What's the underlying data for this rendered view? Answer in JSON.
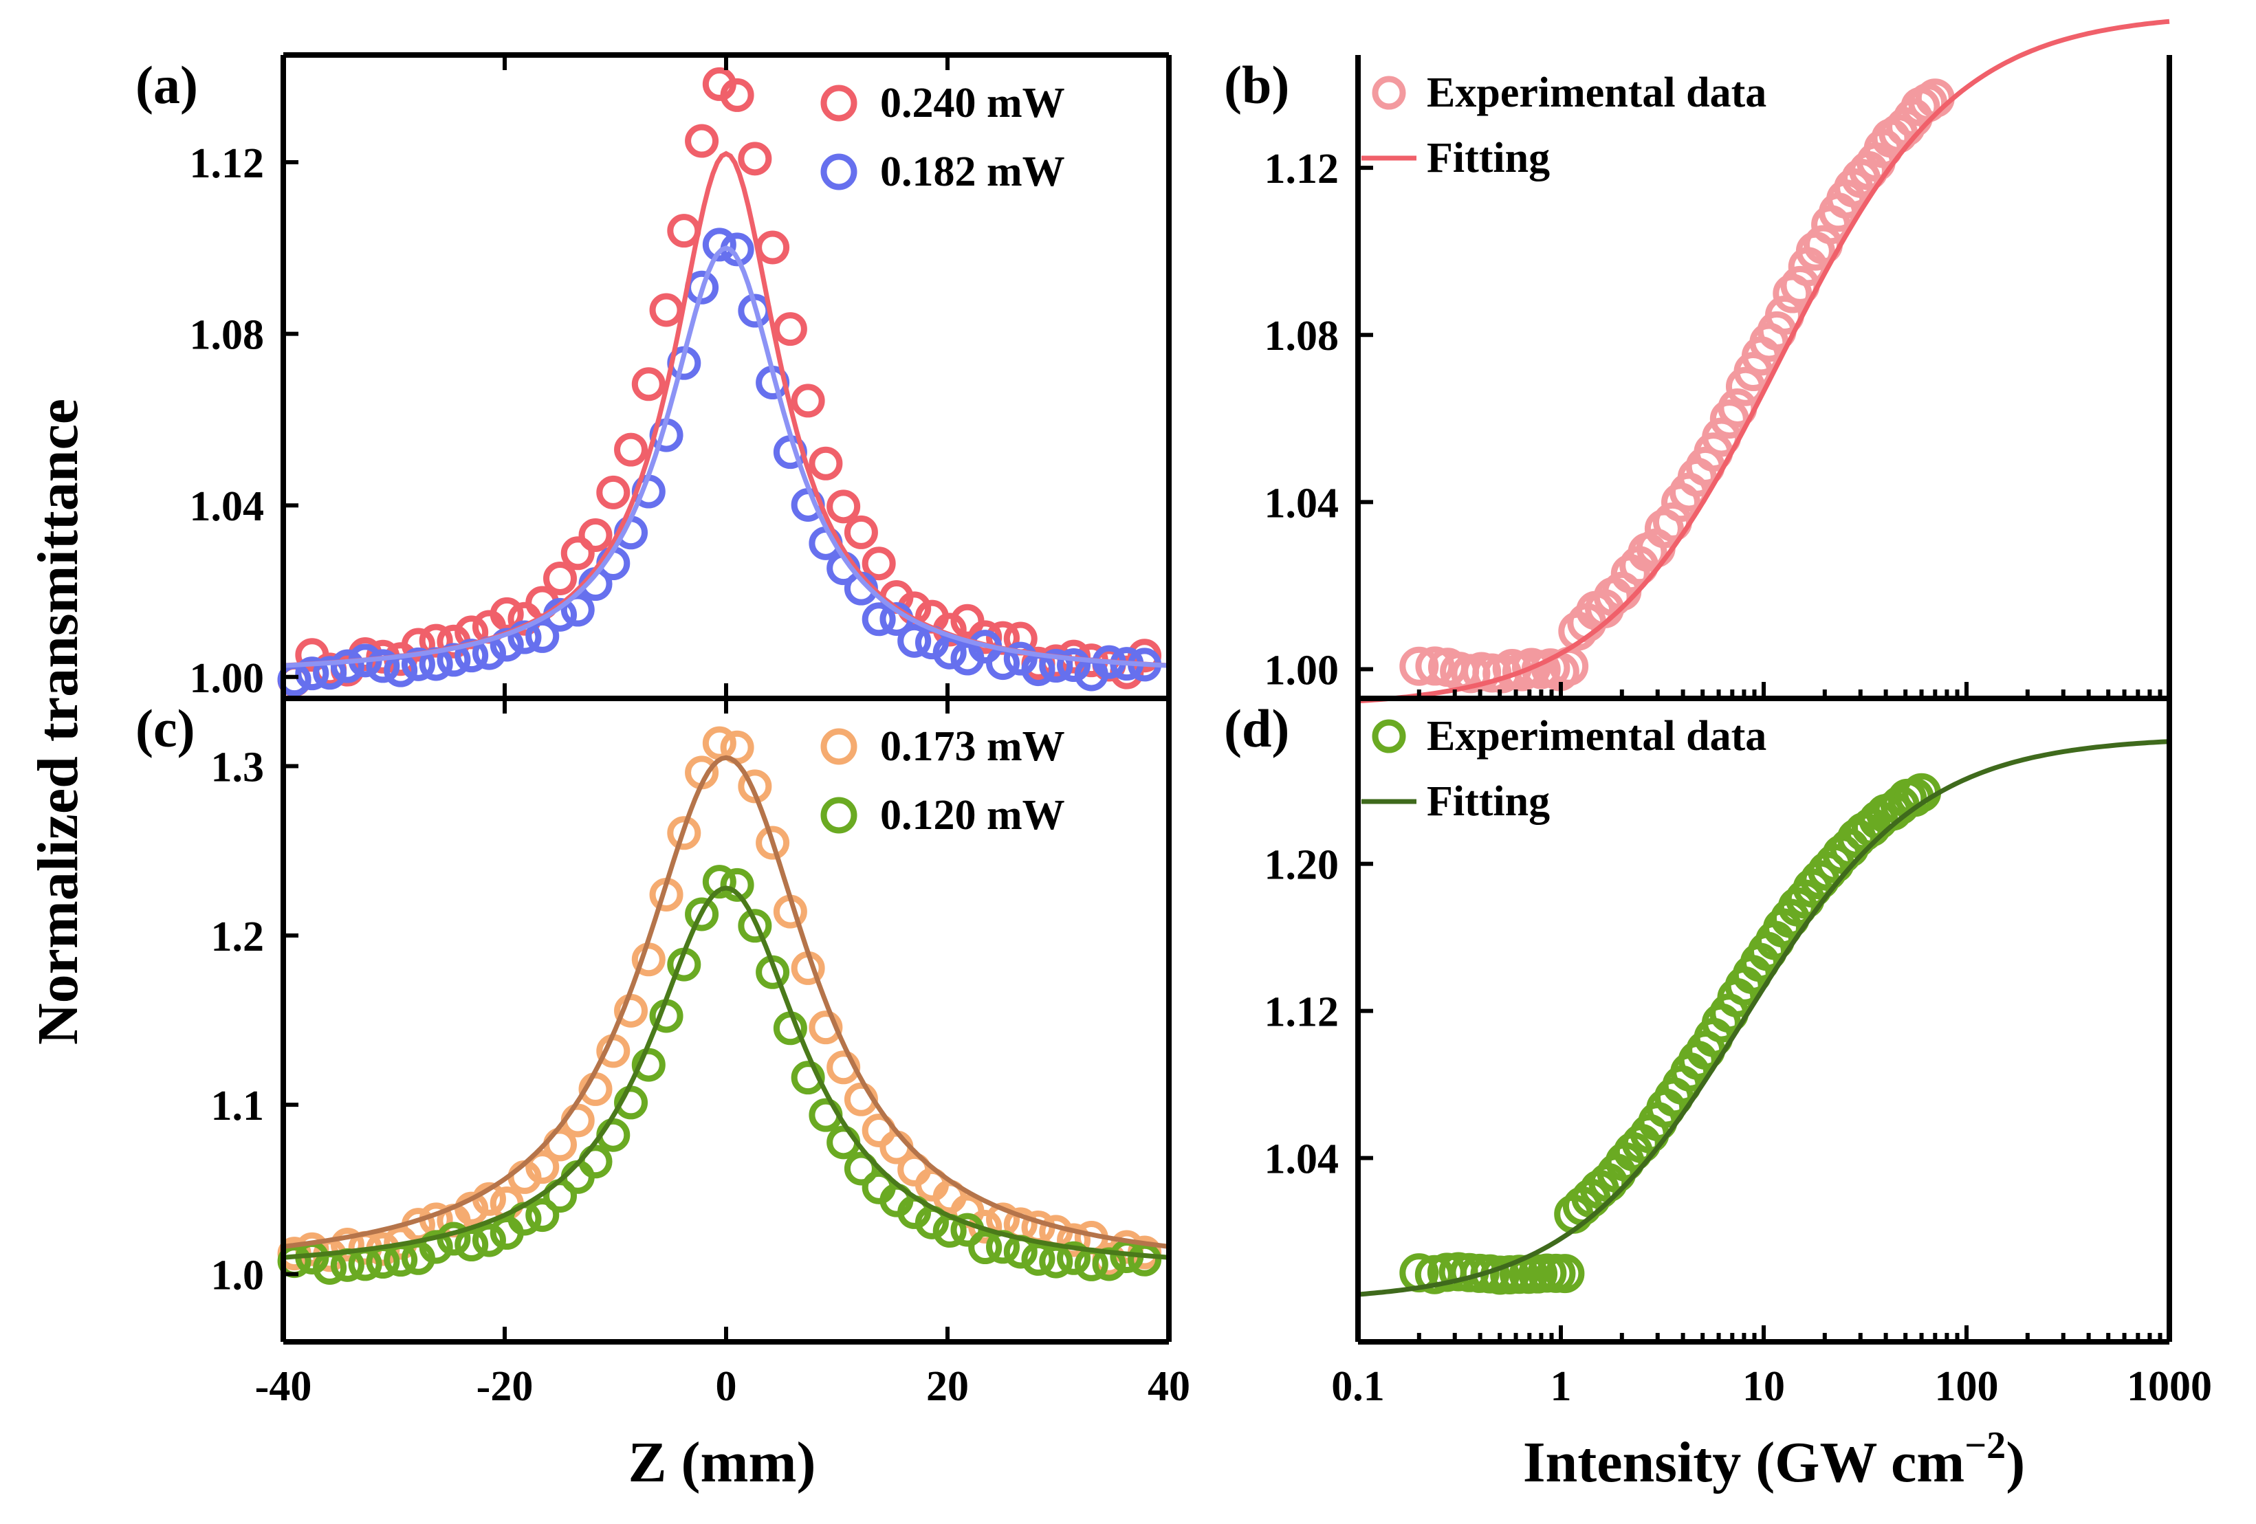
{
  "figure": {
    "ylabel_shared": "Normalized transmittance",
    "xlabel_left": "Z (mm)",
    "xlabel_right_main": "Intensity (GW cm",
    "xlabel_right_sup": "−2",
    "xlabel_right_close": ")"
  },
  "chart_data": [
    {
      "panel": "(a)",
      "type": "scatter",
      "xlim": [
        -40,
        40
      ],
      "ylim": [
        0.995,
        1.145
      ],
      "yticks": [
        1.0,
        1.04,
        1.08,
        1.12
      ],
      "ytick_labels": [
        "1.00",
        "1.04",
        "1.08",
        "1.12"
      ],
      "xticks": [
        -40,
        -20,
        0,
        20,
        40
      ],
      "legend_position": "top-right",
      "series": [
        {
          "name": "0.240 mW",
          "color": "#f0606a",
          "fit_color": "#f0606a",
          "peak": 1.138,
          "width": 6.8,
          "noise": 0.003,
          "fit_peak": 1.122,
          "fit_width": 6.0
        },
        {
          "name": "0.182 mW",
          "color": "#6670ee",
          "fit_color": "#8c93f5",
          "peak": 1.102,
          "width": 6.0,
          "noise": 0.002,
          "fit_peak": 1.1,
          "fit_width": 6.6
        }
      ]
    },
    {
      "panel": "(b)",
      "type": "scatter",
      "xscale": "log",
      "xlim": [
        0.1,
        1000
      ],
      "ylim": [
        0.993,
        1.147
      ],
      "yticks": [
        1.0,
        1.04,
        1.08,
        1.12
      ],
      "ytick_labels": [
        "1.00",
        "1.04",
        "1.08",
        "1.12"
      ],
      "legend_position": "top-left",
      "legend": [
        "Experimental data",
        "Fitting"
      ],
      "marker_color": "#f39a9f",
      "fit_color": "#f0606a",
      "fit": {
        "base": 0.991,
        "amplitude": 0.166,
        "saturation_intensity": 12
      },
      "data_range": [
        0.2,
        70
      ]
    },
    {
      "panel": "(c)",
      "type": "scatter",
      "xlim": [
        -40,
        40
      ],
      "ylim": [
        0.96,
        1.34
      ],
      "yticks": [
        1.0,
        1.1,
        1.2,
        1.3
      ],
      "ytick_labels": [
        "1.0",
        "1.1",
        "1.2",
        "1.3"
      ],
      "xticks": [
        -40,
        -20,
        0,
        20,
        40
      ],
      "xtick_labels": [
        "-40",
        "-20",
        "0",
        "20",
        "40"
      ],
      "legend_position": "top-right",
      "series": [
        {
          "name": "0.173 mW",
          "color": "#f5ab70",
          "fit_color": "#b5744a",
          "peak": 1.315,
          "width": 8.5,
          "noise": 0.006,
          "fit_peak": 1.305,
          "fit_width": 9.5
        },
        {
          "name": "0.120 mW",
          "color": "#6aaa22",
          "fit_color": "#4a7a1a",
          "peak": 1.232,
          "width": 7.5,
          "noise": 0.004,
          "fit_peak": 1.228,
          "fit_width": 8.5
        }
      ]
    },
    {
      "panel": "(d)",
      "type": "scatter",
      "xscale": "log",
      "xlim": [
        0.1,
        1000
      ],
      "ylim": [
        0.94,
        1.29
      ],
      "yticks": [
        1.04,
        1.12,
        1.2
      ],
      "ytick_labels": [
        "1.04",
        "1.12",
        "1.20"
      ],
      "xticks": [
        0.1,
        1,
        10,
        100,
        1000
      ],
      "xtick_labels": [
        "0.1",
        "1",
        "10",
        "100",
        "1000"
      ],
      "legend_position": "top-left",
      "legend": [
        "Experimental data",
        "Fitting"
      ],
      "marker_color": "#6aaa22",
      "fit_color": "#3f6a1c",
      "fit": {
        "base": 0.962,
        "amplitude": 0.307,
        "saturation_intensity": 8
      },
      "data_range": [
        0.2,
        60
      ]
    }
  ]
}
